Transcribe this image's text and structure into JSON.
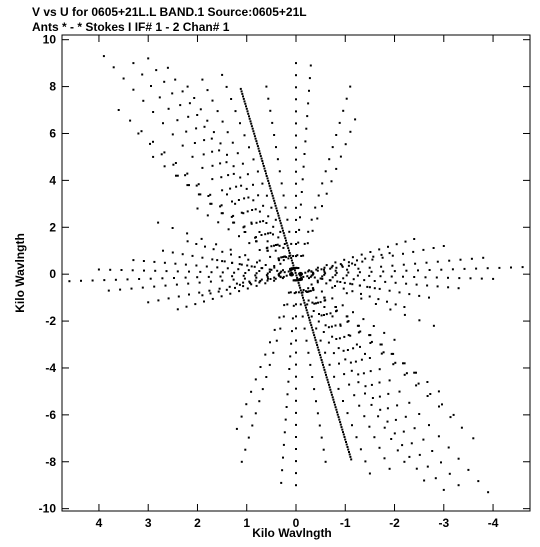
{
  "header": {
    "line1": "V vs U for 0605+21L.L BAND.1   Source:0605+21L",
    "line2": "Ants * - *    Stokes I  IF# 1 - 2  Chan# 1"
  },
  "colors": {
    "ink": "#000000",
    "background": "#ffffff"
  },
  "chart_data": {
    "type": "scatter",
    "xlabel": "Kilo Wavlngth",
    "ylabel": "Kilo Wavlngth",
    "xlim": [
      4.75,
      -4.75
    ],
    "ylim": [
      -10.1,
      10.2
    ],
    "x_reversed": true,
    "grid": false,
    "x_ticks": [
      4,
      3,
      2,
      1,
      0,
      -1,
      -2,
      -3,
      -4
    ],
    "x_tick_labels": [
      "4",
      "3",
      "2",
      "1",
      "0",
      "-1",
      "-2",
      "-3",
      "-4"
    ],
    "y_ticks": [
      10,
      8,
      6,
      4,
      2,
      0,
      -2,
      -4,
      -6,
      -8,
      -10
    ],
    "y_tick_labels": [
      "10",
      "8",
      "6",
      "4",
      "2",
      "0",
      "-2",
      "-4",
      "-6",
      "-8",
      "-10"
    ],
    "tracks": [
      {
        "u0": 1.12,
        "v0": 7.9,
        "u1": -1.12,
        "v1": -7.9,
        "n": 150
      },
      {
        "u0": 1.9,
        "v0": 8.3,
        "u1": -1.9,
        "v1": -8.3,
        "n": 38
      },
      {
        "u0": 1.5,
        "v0": 8.5,
        "u1": -1.5,
        "v1": -8.5,
        "n": 34
      },
      {
        "u0": 0.6,
        "v0": 8.0,
        "u1": -0.6,
        "v1": -8.0,
        "n": 32
      },
      {
        "u0": 0.0,
        "v0": 9.0,
        "u1": 0.0,
        "v1": -9.0,
        "n": 36
      },
      {
        "u0": -0.3,
        "v0": 8.9,
        "u1": 0.3,
        "v1": -8.9,
        "n": 34
      },
      {
        "u0": -1.1,
        "v0": 8.0,
        "u1": 1.1,
        "v1": -8.0,
        "n": 32
      },
      {
        "u0": -1.2,
        "v0": 6.6,
        "u1": 1.2,
        "v1": -6.6,
        "n": 26
      },
      {
        "u0": 3.9,
        "v0": 9.3,
        "u1": -3.9,
        "v1": -9.3,
        "n": 40
      },
      {
        "u0": 3.3,
        "v0": 9.0,
        "u1": -3.3,
        "v1": -9.0,
        "n": 38
      },
      {
        "u0": 3.0,
        "v0": 9.2,
        "u1": -3.0,
        "v1": -9.2,
        "n": 38
      },
      {
        "u0": 2.6,
        "v0": 8.8,
        "u1": -2.6,
        "v1": -8.8,
        "n": 36
      },
      {
        "u0": 2.2,
        "v0": 8.0,
        "u1": -2.2,
        "v1": -8.0,
        "n": 34
      },
      {
        "u0": 3.6,
        "v0": 7.0,
        "u1": -3.6,
        "v1": -7.0,
        "n": 32
      },
      {
        "u0": 3.2,
        "v0": 6.0,
        "u1": -3.2,
        "v1": -6.0,
        "n": 28
      },
      {
        "u0": 2.9,
        "v0": 5.0,
        "u1": -2.9,
        "v1": -5.0,
        "n": 26
      },
      {
        "u0": 2.4,
        "v0": 4.2,
        "u1": -2.4,
        "v1": -4.2,
        "n": 22
      },
      {
        "u0": 2.8,
        "v0": 2.2,
        "u1": -2.8,
        "v1": -2.2,
        "n": 20
      },
      {
        "u0": 2.0,
        "v0": 2.8,
        "u1": -2.0,
        "v1": -2.8,
        "n": 20
      },
      {
        "u0": 1.4,
        "v0": 3.4,
        "u1": -1.4,
        "v1": -3.4,
        "n": 18
      },
      {
        "u0": 4.6,
        "v0": -0.3,
        "u1": -4.6,
        "v1": 0.3,
        "n": 40
      },
      {
        "u0": 4.0,
        "v0": 0.2,
        "u1": -4.0,
        "v1": -0.2,
        "n": 36
      },
      {
        "u0": 3.8,
        "v0": -0.7,
        "u1": -3.8,
        "v1": 0.7,
        "n": 34
      },
      {
        "u0": 3.3,
        "v0": 0.6,
        "u1": -3.3,
        "v1": -0.6,
        "n": 32
      },
      {
        "u0": 3.0,
        "v0": -1.2,
        "u1": -3.0,
        "v1": 1.2,
        "n": 30
      },
      {
        "u0": 2.7,
        "v0": 1.0,
        "u1": -2.7,
        "v1": -1.0,
        "n": 28
      },
      {
        "u0": 2.4,
        "v0": -1.5,
        "u1": -2.4,
        "v1": 1.5,
        "n": 28
      },
      {
        "u0": 2.2,
        "v0": 1.4,
        "u1": -2.2,
        "v1": -1.4,
        "n": 26
      },
      {
        "u0": 1.9,
        "v0": -0.9,
        "u1": -1.9,
        "v1": 0.9,
        "n": 24
      },
      {
        "u0": 1.6,
        "v0": 0.6,
        "u1": -1.6,
        "v1": -0.6,
        "n": 22
      },
      {
        "u0": 1.2,
        "v0": -0.4,
        "u1": -1.2,
        "v1": 0.4,
        "n": 20
      }
    ]
  }
}
